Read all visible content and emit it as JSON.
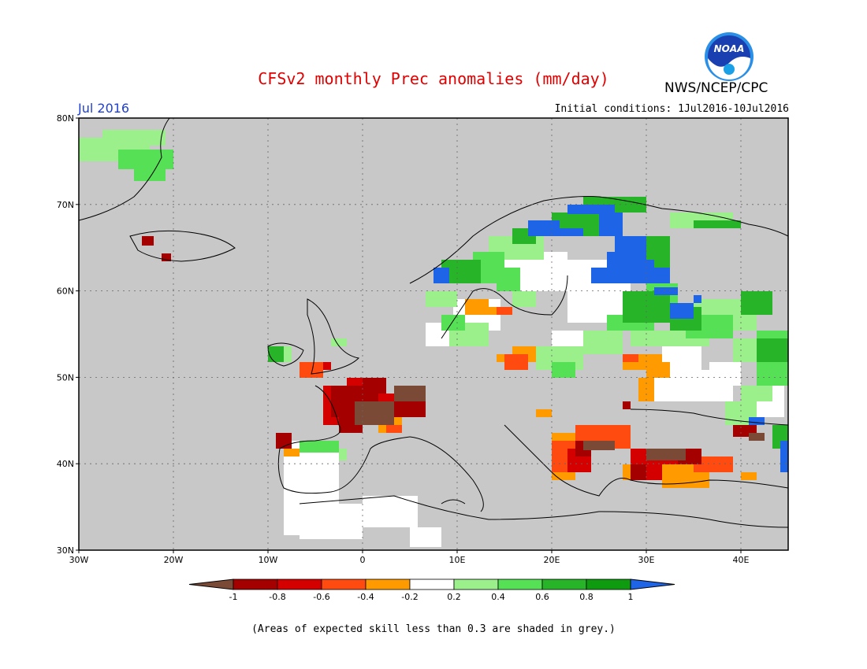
{
  "header": {
    "title": "CFSv2 monthly Prec anomalies (mm/day)",
    "month": "Jul 2016",
    "initial_conditions": "Initial conditions: 1Jul2016-10Jul2016",
    "agency": "NWS/NCEP/CPC",
    "logo_text": "NOAA"
  },
  "map": {
    "lat_labels": [
      "80N",
      "70N",
      "60N",
      "50N",
      "40N",
      "30N"
    ],
    "lon_labels": [
      "30W",
      "20W",
      "10W",
      "0",
      "10E",
      "20E",
      "30E",
      "40E"
    ],
    "colors": {
      "grey_mask": "#c8c8c8",
      "ocean_frame": "#000000"
    }
  },
  "legend": {
    "labels": [
      "-1",
      "-0.8",
      "-0.6",
      "-0.4",
      "-0.2",
      "0.2",
      "0.4",
      "0.6",
      "0.8",
      "1"
    ],
    "colors": [
      "#7a4a36",
      "#a50000",
      "#d40000",
      "#ff4a10",
      "#ff9b00",
      "#ffffff",
      "#9bf08c",
      "#55e055",
      "#28b428",
      "#0f9b0f",
      "#1e64e6"
    ]
  },
  "footer": {
    "caption": "(Areas of expected skill less than 0.3 are shaded in grey.)"
  }
}
